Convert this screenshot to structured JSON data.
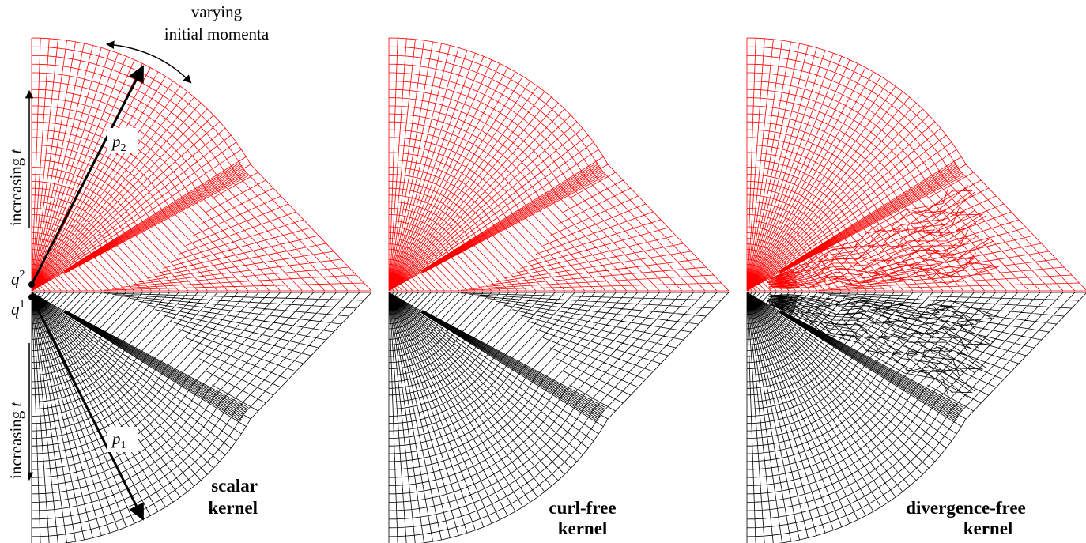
{
  "annotations": {
    "momenta": [
      "varying",
      "initial momenta"
    ],
    "time_upper": {
      "text": "increasing",
      "var": "t"
    },
    "time_lower": {
      "text": "increasing",
      "var": "t"
    },
    "p_upper": {
      "base": "p",
      "sub": "2"
    },
    "p_lower": {
      "base": "p",
      "sub": "1"
    },
    "q_upper": {
      "base": "q",
      "sup": "2"
    },
    "q_lower": {
      "base": "q",
      "sup": "1"
    }
  },
  "panels": [
    {
      "title_lines": [
        "scalar",
        "kernel"
      ]
    },
    {
      "title_lines": [
        "curl-free",
        "kernel"
      ]
    },
    {
      "title_lines": [
        "divergence-free",
        "kernel"
      ]
    }
  ]
}
